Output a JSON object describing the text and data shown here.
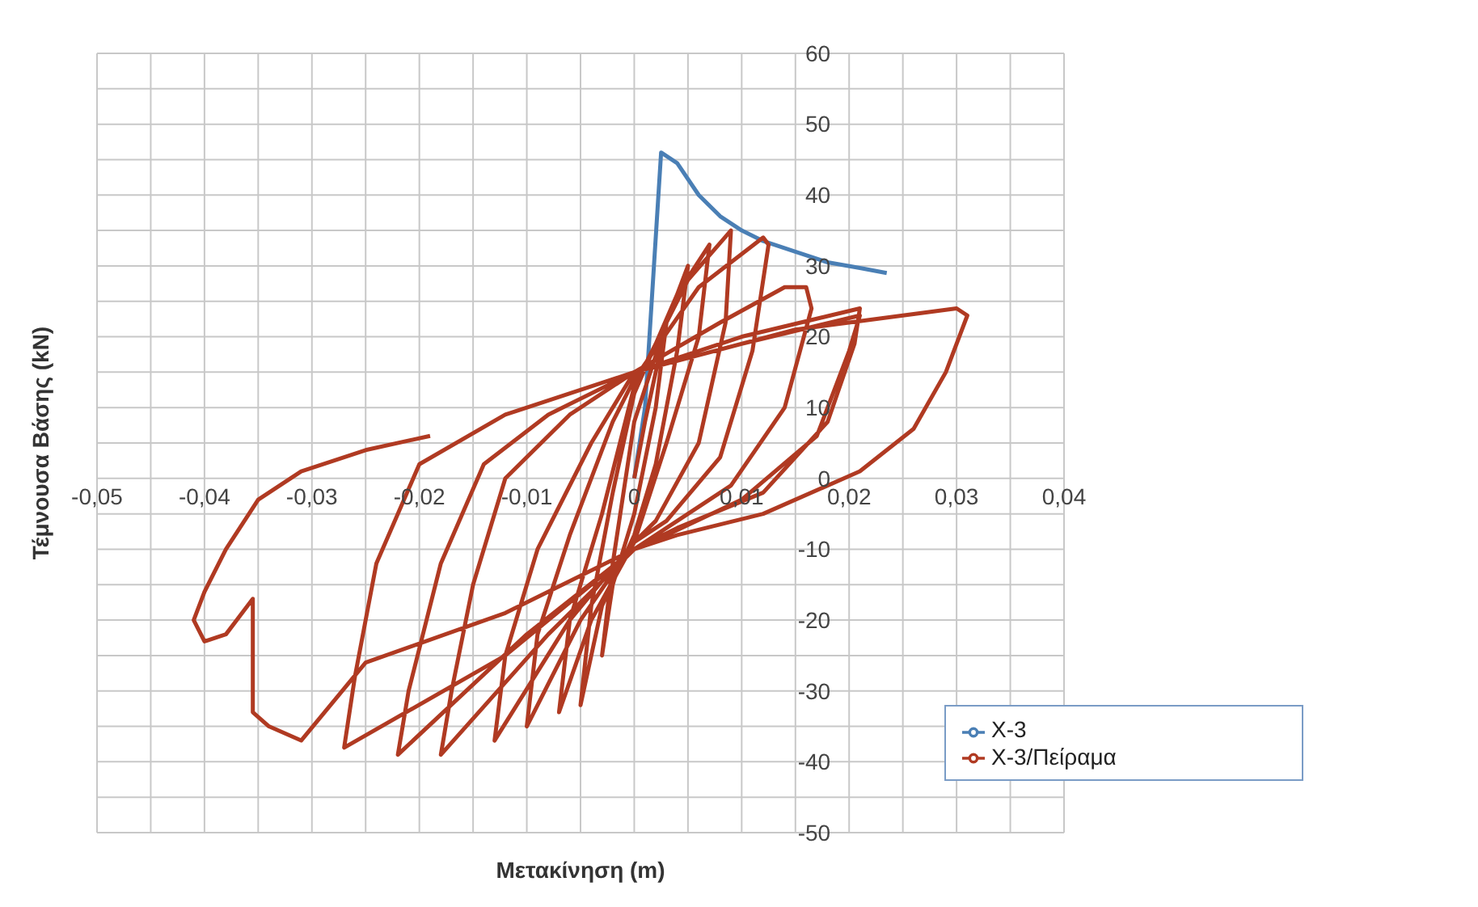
{
  "chart_data": {
    "type": "line",
    "xlabel": "Μετακίνηση (m)",
    "ylabel": "Τέμνουσα Βάσης (kN)",
    "xlim": [
      -0.05,
      0.04
    ],
    "xticks": [
      {
        "value": -0.05,
        "label": "-0,05"
      },
      {
        "value": -0.045,
        "label": null
      },
      {
        "value": -0.04,
        "label": "-0,04"
      },
      {
        "value": -0.035,
        "label": null
      },
      {
        "value": -0.03,
        "label": "-0,03"
      },
      {
        "value": -0.025,
        "label": null
      },
      {
        "value": -0.02,
        "label": "-0,02"
      },
      {
        "value": -0.015,
        "label": null
      },
      {
        "value": -0.01,
        "label": "-0,01"
      },
      {
        "value": -0.005,
        "label": null
      },
      0,
      {
        "value": 0.005,
        "label": null
      },
      {
        "value": 0.01,
        "label": "0,01"
      },
      {
        "value": 0.015,
        "label": null
      },
      {
        "value": 0.02,
        "label": "0,02"
      },
      {
        "value": 0.025,
        "label": null
      },
      {
        "value": 0.03,
        "label": "0,03"
      },
      {
        "value": 0.035,
        "label": null
      },
      {
        "value": 0.04,
        "label": "0,04"
      }
    ],
    "ylim": [
      -50,
      60
    ],
    "yticks": [
      -50,
      {
        "value": -45,
        "label": null
      },
      -40,
      {
        "value": -35,
        "label": null
      },
      -30,
      {
        "value": -25,
        "label": null
      },
      -20,
      {
        "value": -15,
        "label": null
      },
      -10,
      {
        "value": -5,
        "label": null
      },
      0,
      {
        "value": 5,
        "label": null
      },
      10,
      {
        "value": 15,
        "label": null
      },
      20,
      {
        "value": 25,
        "label": null
      },
      30,
      {
        "value": 35,
        "label": null
      },
      40,
      {
        "value": 45,
        "label": null
      },
      50,
      {
        "value": 55,
        "label": null
      },
      60
    ],
    "grid": true,
    "legend": "bottom right",
    "marker": "none",
    "line_style": "solid",
    "series": [
      {
        "name": "X-3",
        "color": "#4a7fb5",
        "x": [
          0,
          0.001,
          0.0025,
          0.004,
          0.006,
          0.008,
          0.01,
          0.012,
          0.015,
          0.018,
          0.021,
          0.0235
        ],
        "values": [
          0,
          10,
          46,
          44.5,
          40,
          37,
          35,
          33.5,
          32,
          30.5,
          29.7,
          29
        ]
      },
      {
        "name": "X-3/Πείραμα",
        "color": "#b03a22",
        "x": [
          0,
          0.001,
          0.003,
          0.002,
          0,
          -0.002,
          -0.003,
          -0.002,
          0,
          0.003,
          0.005,
          0.004,
          0.002,
          0,
          -0.003,
          -0.005,
          -0.004,
          -0.002,
          0,
          0.004,
          0.007,
          0.006,
          0.003,
          0,
          -0.004,
          -0.007,
          -0.006,
          -0.003,
          0,
          0.005,
          0.009,
          0.0085,
          0.006,
          0.002,
          0,
          -0.005,
          -0.01,
          -0.009,
          -0.006,
          -0.002,
          0,
          0.006,
          0.012,
          0.0125,
          0.011,
          0.008,
          0.003,
          0,
          -0.006,
          -0.013,
          -0.012,
          -0.009,
          -0.004,
          0,
          0.008,
          0.014,
          0.016,
          0.0165,
          0.014,
          0.009,
          0.003,
          0,
          -0.008,
          -0.018,
          -0.017,
          -0.015,
          -0.012,
          -0.006,
          0,
          0.01,
          0.021,
          0.02,
          0.017,
          0.01,
          0.003,
          0,
          -0.01,
          -0.022,
          -0.021,
          -0.018,
          -0.014,
          -0.008,
          0,
          0.01,
          0.021,
          0.0205,
          0.018,
          0.012,
          0.004,
          0,
          -0.012,
          -0.027,
          -0.026,
          -0.024,
          -0.02,
          -0.012,
          0,
          0.015,
          0.025,
          0.03,
          0.031,
          0.029,
          0.026,
          0.021,
          0.012,
          0.004,
          0,
          -0.012,
          -0.025,
          -0.031,
          -0.034,
          -0.0355,
          -0.0355,
          -0.038,
          -0.04,
          -0.041,
          -0.04,
          -0.038,
          -0.035,
          -0.031,
          -0.025,
          -0.019
        ],
        "values": [
          0,
          8,
          22,
          10,
          -5,
          -15,
          -25,
          -12,
          8,
          22,
          30,
          18,
          2,
          -8,
          -18,
          -32,
          -18,
          -2,
          12,
          26,
          33,
          20,
          5,
          -9,
          -20,
          -33,
          -20,
          -5,
          13,
          28,
          35,
          22,
          5,
          -6,
          -9,
          -20,
          -35,
          -22,
          -8,
          8,
          14,
          27,
          34,
          33,
          18,
          3,
          -6,
          -9,
          -20,
          -37,
          -25,
          -10,
          5,
          15,
          22,
          27,
          27,
          24,
          10,
          -1,
          -7,
          -10,
          -22,
          -39,
          -30,
          -15,
          0,
          9,
          15,
          19,
          23,
          18,
          6,
          -3,
          -8,
          -10,
          -22,
          -39,
          -30,
          -12,
          2,
          9,
          15,
          20,
          24,
          19,
          8,
          -2,
          -7,
          -10,
          -25,
          -38,
          -28,
          -12,
          2,
          9,
          15,
          21,
          23,
          24,
          23,
          15,
          7,
          1,
          -5,
          -8,
          -10,
          -19,
          -26,
          -37,
          -35,
          -33,
          -17,
          -22,
          -23,
          -20,
          -16,
          -10,
          -3,
          1,
          4,
          6
        ]
      }
    ]
  }
}
